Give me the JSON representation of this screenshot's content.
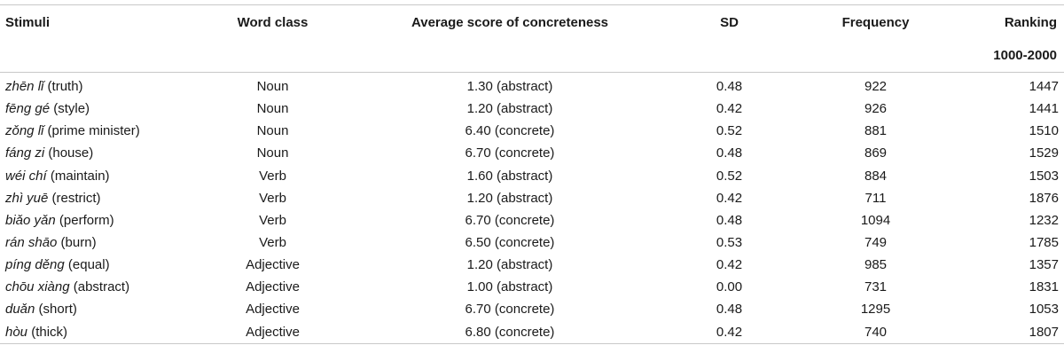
{
  "headers": {
    "stimuli": "Stimuli",
    "word_class": "Word class",
    "average": "Average score of concreteness",
    "sd": "SD",
    "frequency": "Frequency",
    "ranking": "Ranking",
    "ranking_sub": "1000-2000"
  },
  "rows": [
    {
      "pinyin": "zhēn lǐ",
      "gloss": "(truth)",
      "word_class": "Noun",
      "average": "1.30 (abstract)",
      "sd": "0.48",
      "frequency": "922",
      "ranking": "1447"
    },
    {
      "pinyin": "fēng gé",
      "gloss": "(style)",
      "word_class": "Noun",
      "average": "1.20 (abstract)",
      "sd": "0.42",
      "frequency": "926",
      "ranking": "1441"
    },
    {
      "pinyin": "zǒng lǐ",
      "gloss": "(prime minister)",
      "word_class": "Noun",
      "average": "6.40 (concrete)",
      "sd": "0.52",
      "frequency": "881",
      "ranking": "1510"
    },
    {
      "pinyin": "fáng zi",
      "gloss": "(house)",
      "word_class": "Noun",
      "average": "6.70 (concrete)",
      "sd": "0.48",
      "frequency": "869",
      "ranking": "1529"
    },
    {
      "pinyin": "wéi chí",
      "gloss": "(maintain)",
      "word_class": "Verb",
      "average": "1.60 (abstract)",
      "sd": "0.52",
      "frequency": "884",
      "ranking": "1503"
    },
    {
      "pinyin": "zhì yuē",
      "gloss": "(restrict)",
      "word_class": "Verb",
      "average": "1.20 (abstract)",
      "sd": "0.42",
      "frequency": "711",
      "ranking": "1876"
    },
    {
      "pinyin": "biǎo yǎn",
      "gloss": "(perform)",
      "word_class": "Verb",
      "average": "6.70 (concrete)",
      "sd": "0.48",
      "frequency": "1094",
      "ranking": "1232"
    },
    {
      "pinyin": "rán shāo",
      "gloss": "(burn)",
      "word_class": "Verb",
      "average": "6.50 (concrete)",
      "sd": "0.53",
      "frequency": "749",
      "ranking": "1785"
    },
    {
      "pinyin": "píng děng",
      "gloss": "(equal)",
      "word_class": "Adjective",
      "average": "1.20 (abstract)",
      "sd": "0.42",
      "frequency": "985",
      "ranking": "1357"
    },
    {
      "pinyin": "chōu xiàng",
      "gloss": "(abstract)",
      "word_class": "Adjective",
      "average": "1.00 (abstract)",
      "sd": "0.00",
      "frequency": "731",
      "ranking": "1831"
    },
    {
      "pinyin": "duǎn",
      "gloss": "(short)",
      "word_class": "Adjective",
      "average": "6.70 (concrete)",
      "sd": "0.48",
      "frequency": "1295",
      "ranking": "1053"
    },
    {
      "pinyin": "hòu",
      "gloss": "(thick)",
      "word_class": "Adjective",
      "average": "6.80 (concrete)",
      "sd": "0.42",
      "frequency": "740",
      "ranking": "1807"
    }
  ]
}
